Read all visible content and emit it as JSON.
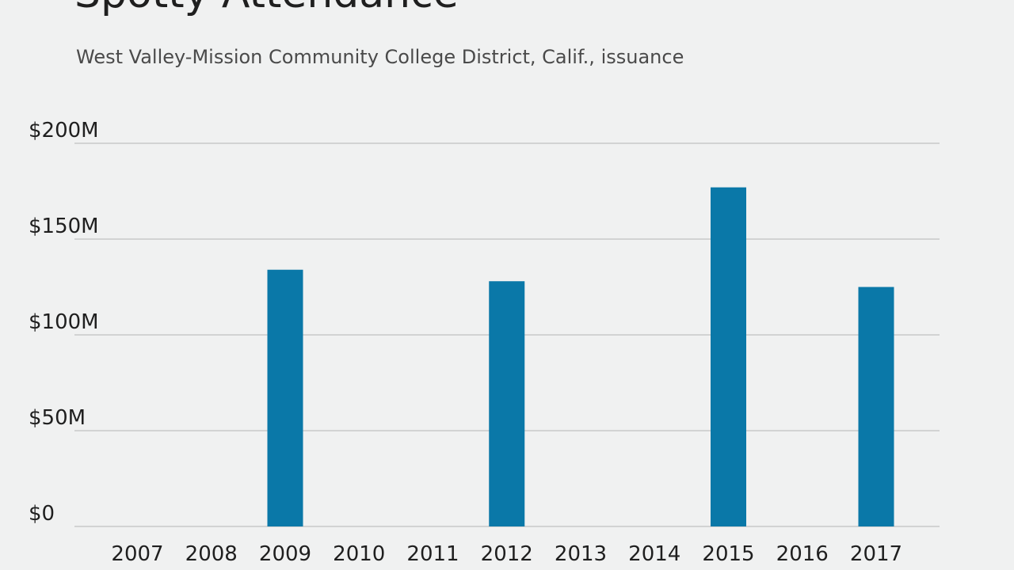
{
  "colors": {
    "background": "#f0f1f1",
    "bar": "#0a78a8",
    "grid": "#b5b5b5"
  },
  "chart_data": {
    "type": "bar",
    "title": "Spotty Attendance",
    "subtitle": "West Valley-Mission Community College District, Calif., issuance",
    "xlabel": "",
    "ylabel": "",
    "categories": [
      "2007",
      "2008",
      "2009",
      "2010",
      "2011",
      "2012",
      "2013",
      "2014",
      "2015",
      "2016",
      "2017"
    ],
    "values": [
      0,
      0,
      134,
      0,
      0,
      128,
      0,
      0,
      177,
      0,
      125
    ],
    "ylim": [
      0,
      200
    ],
    "yticks": [
      0,
      50,
      100,
      150,
      200
    ],
    "ytick_labels": [
      "$0",
      "$50M",
      "$100M",
      "$150M",
      "$200M"
    ],
    "grid": true,
    "units": "millions of dollars"
  }
}
